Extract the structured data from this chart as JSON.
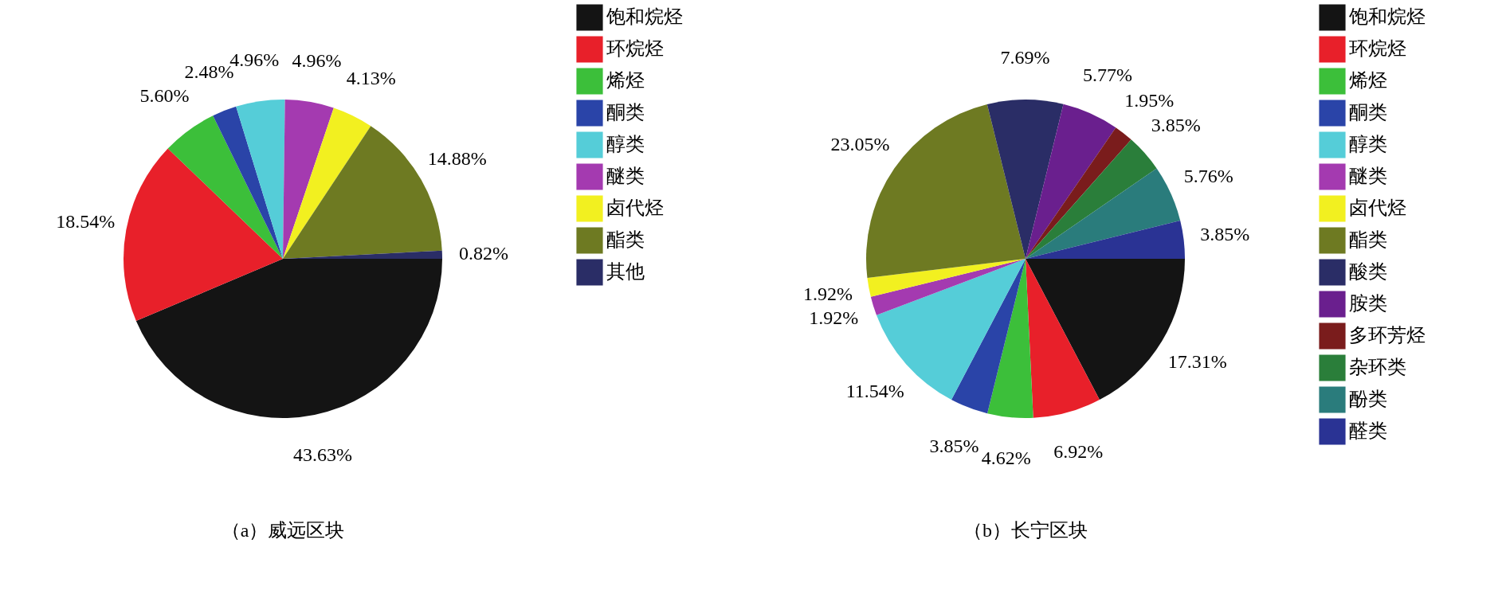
{
  "chart_data": [
    {
      "type": "pie",
      "title": "（a）威远区块",
      "categories": [
        "饱和烷烃",
        "环烷烃",
        "烯烃",
        "酮类",
        "醇类",
        "醚类",
        "卤代烃",
        "酯类",
        "其他"
      ],
      "values": [
        43.63,
        18.54,
        5.6,
        2.48,
        4.96,
        4.96,
        4.13,
        14.88,
        0.82
      ],
      "value_labels": [
        "43.63%",
        "18.54%",
        "5.60%",
        "2.48%",
        "4.96%",
        "4.96%",
        "4.13%",
        "14.88%",
        "0.82%"
      ],
      "colors": [
        "#141414",
        "#e8202a",
        "#3cbf3a",
        "#2a44a8",
        "#55cdd8",
        "#a43ab0",
        "#f2f020",
        "#6e7a22",
        "#2a2d66"
      ],
      "legend": "right"
    },
    {
      "type": "pie",
      "title": "（b）长宁区块",
      "categories": [
        "饱和烷烃",
        "环烷烃",
        "烯烃",
        "酮类",
        "醇类",
        "醚类",
        "卤代烃",
        "酯类",
        "酸类",
        "胺类",
        "多环芳烃",
        "杂环类",
        "酚类",
        "醛类"
      ],
      "values": [
        17.31,
        6.92,
        4.62,
        3.85,
        11.54,
        1.92,
        1.92,
        23.05,
        7.69,
        5.77,
        1.95,
        3.85,
        5.76,
        3.85
      ],
      "value_labels": [
        "17.31%",
        "6.92%",
        "4.62%",
        "3.85%",
        "11.54%",
        "1.92%",
        "1.92%",
        "23.05%",
        "7.69%",
        "5.77%",
        "1.95%",
        "3.85%",
        "5.76%",
        "3.85%"
      ],
      "colors": [
        "#141414",
        "#e8202a",
        "#3cbf3a",
        "#2a44a8",
        "#55cdd8",
        "#a43ab0",
        "#f2f020",
        "#6e7a22",
        "#2a2d66",
        "#6a1f8e",
        "#7a1c1c",
        "#2a7e3a",
        "#2a7c7c",
        "#2a3394"
      ],
      "legend": "right"
    }
  ]
}
